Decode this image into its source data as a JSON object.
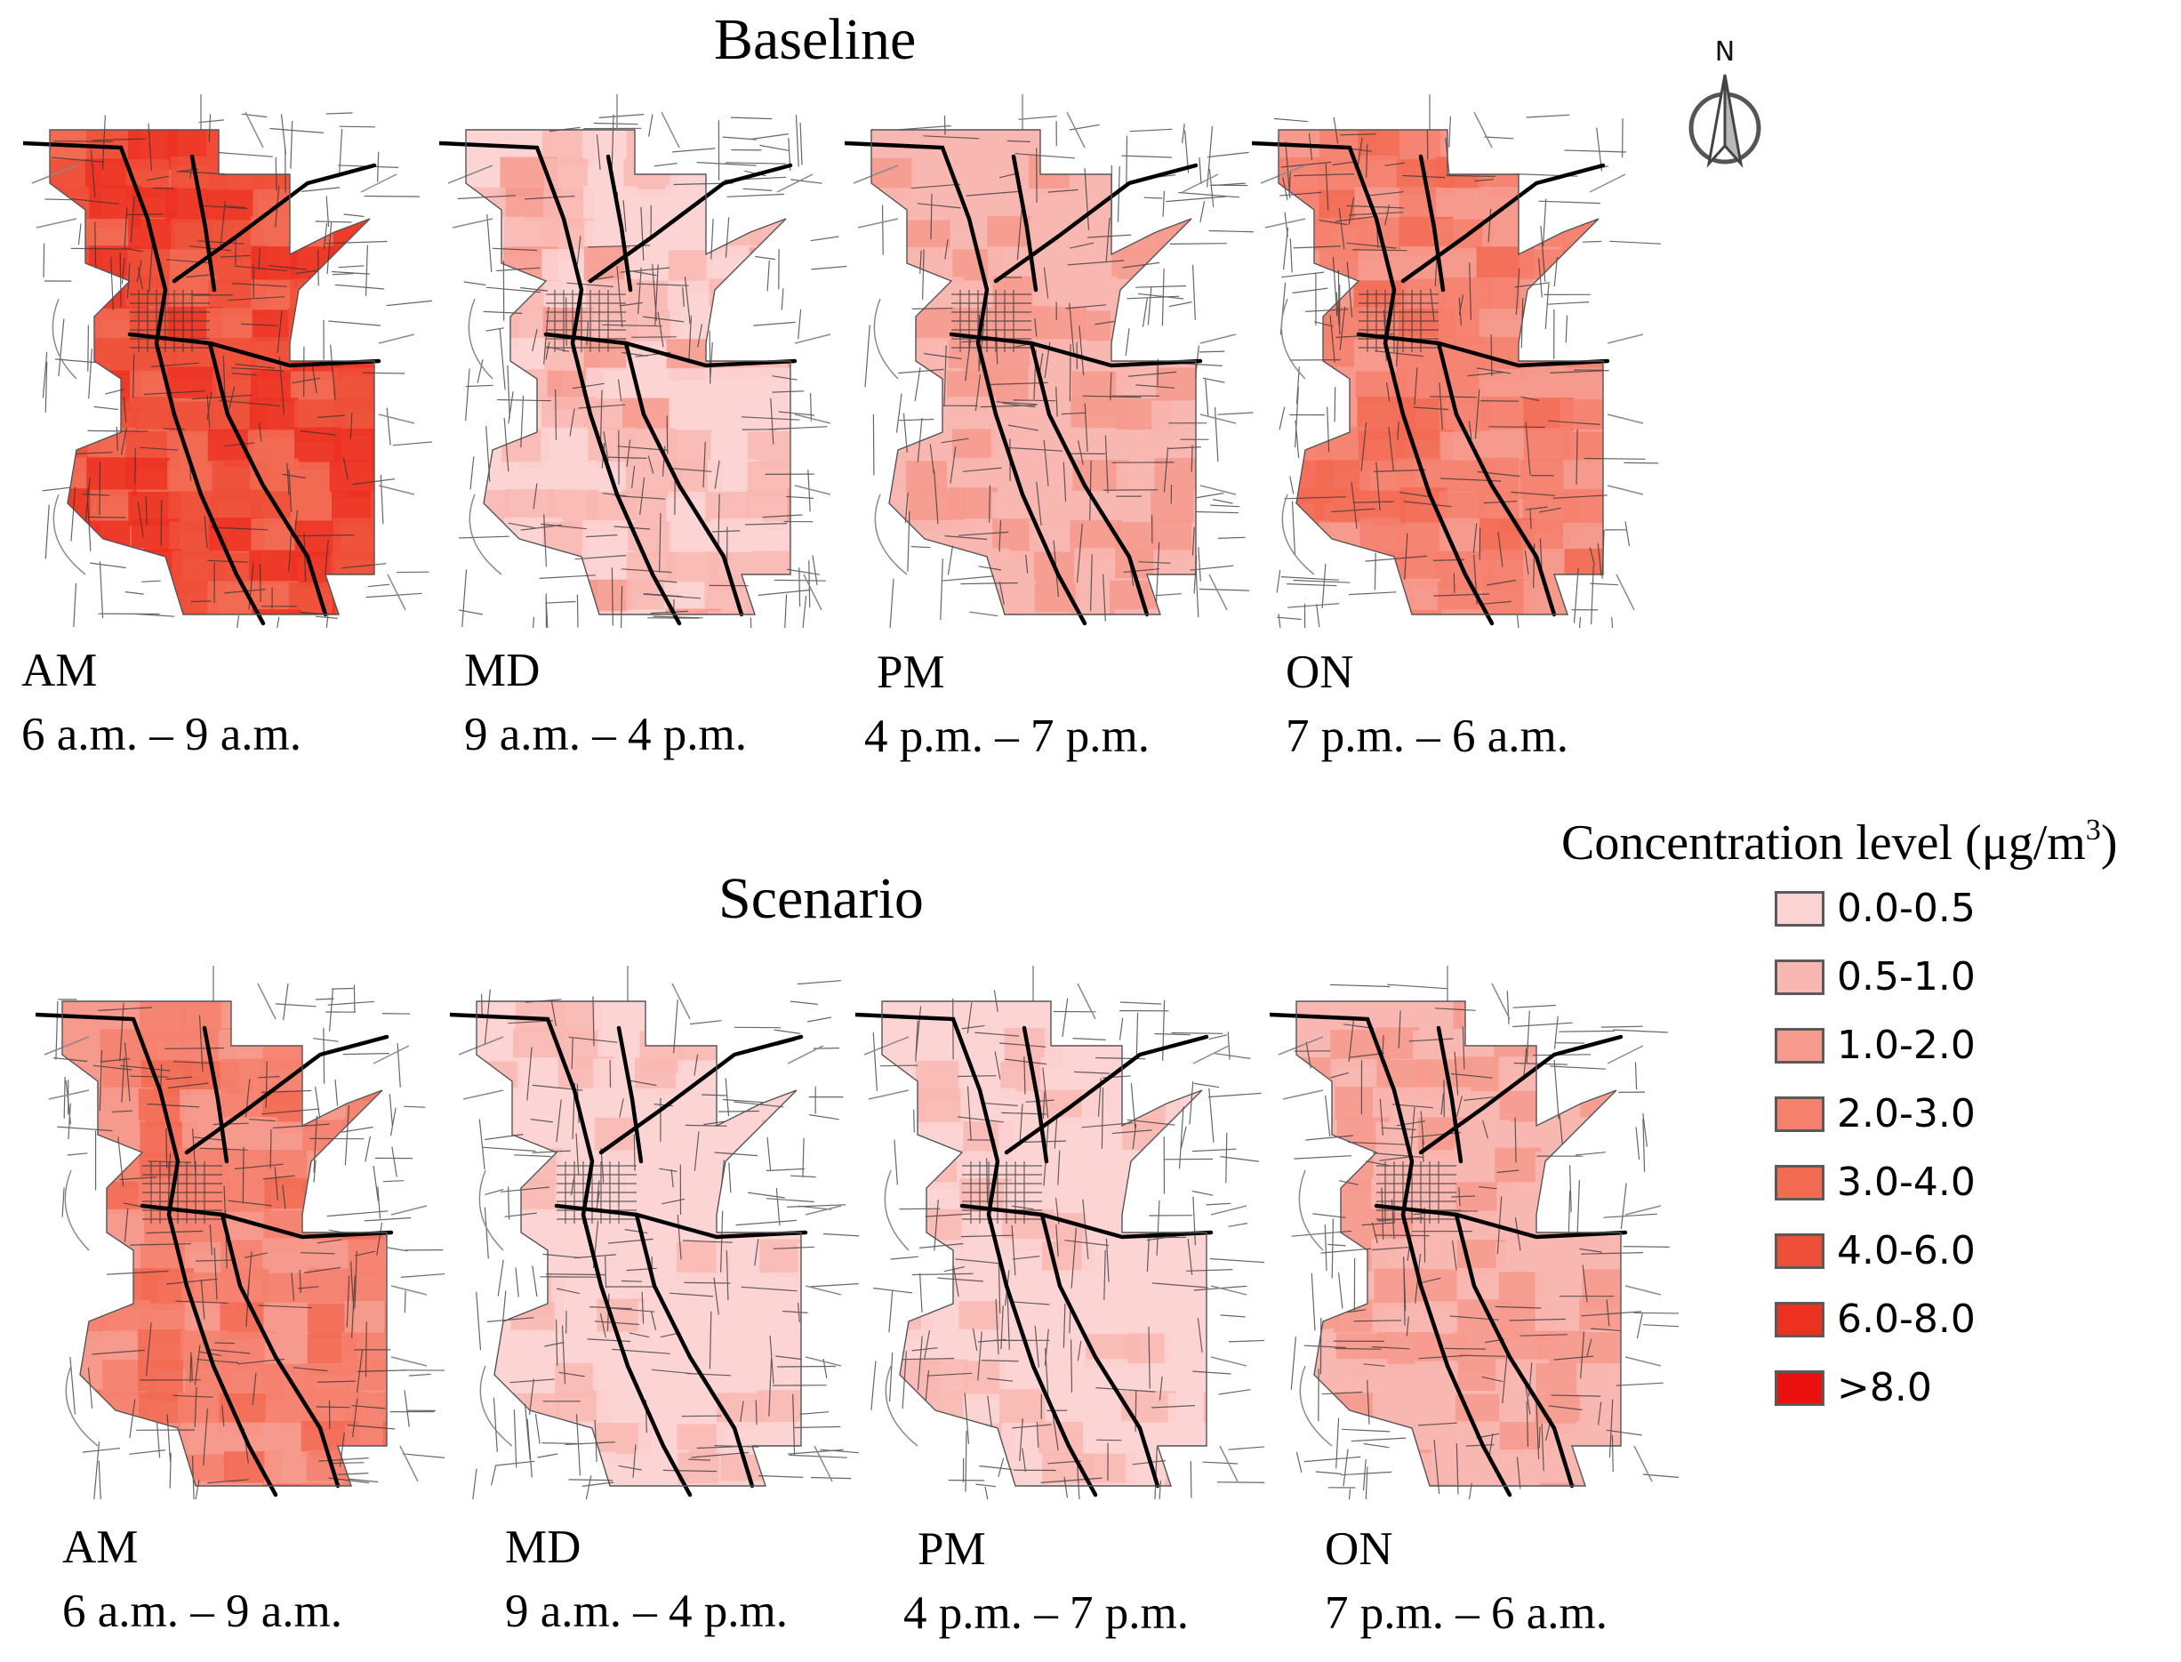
{
  "sections": [
    {
      "title": "Baseline",
      "panels": [
        {
          "code": "AM",
          "hours": "6 a.m. – 9 a.m.",
          "level": "high"
        },
        {
          "code": "MD",
          "hours": "9 a.m. – 4 p.m.",
          "level": "low"
        },
        {
          "code": "PM",
          "hours": "4 p.m. – 7 p.m.",
          "level": "low-mid"
        },
        {
          "code": "ON",
          "hours": "7 p.m. – 6 a.m.",
          "level": "mid"
        }
      ]
    },
    {
      "title": "Scenario",
      "panels": [
        {
          "code": "AM",
          "hours": "6 a.m. – 9 a.m.",
          "level": "mid"
        },
        {
          "code": "MD",
          "hours": "9 a.m. – 4 p.m.",
          "level": "lowest"
        },
        {
          "code": "PM",
          "hours": "4 p.m. – 7 p.m.",
          "level": "lowest"
        },
        {
          "code": "ON",
          "hours": "7 p.m. – 6 a.m.",
          "level": "low-mid"
        }
      ]
    }
  ],
  "north_arrow": {
    "label": "N",
    "icon": "north-arrow-icon"
  },
  "legend": {
    "title_prefix": "Concentration level (μg/m",
    "title_sup": "3",
    "title_suffix": ")",
    "items": [
      {
        "label": "0.0-0.5",
        "color": "#fbd3d3"
      },
      {
        "label": "0.5-1.0",
        "color": "#f9b7b1"
      },
      {
        "label": "1.0-2.0",
        "color": "#f69a8d"
      },
      {
        "label": "2.0-3.0",
        "color": "#f4806d"
      },
      {
        "label": "3.0-4.0",
        "color": "#f26a52"
      },
      {
        "label": "4.0-6.0",
        "color": "#ef4f38"
      },
      {
        "label": "6.0-8.0",
        "color": "#ec3122"
      },
      {
        "label": ">8.0",
        "color": "#ea1010"
      }
    ]
  }
}
